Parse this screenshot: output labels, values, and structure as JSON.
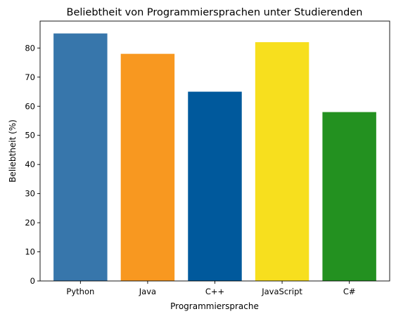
{
  "chart_data": {
    "type": "bar",
    "title": "Beliebtheit von Programmiersprachen unter Studierenden",
    "xlabel": "Programmiersprache",
    "ylabel": "Beliebtheit (%)",
    "categories": [
      "Python",
      "Java",
      "C++",
      "JavaScript",
      "C#"
    ],
    "values": [
      85,
      78,
      65,
      82,
      58
    ],
    "bar_colors": [
      "#3776ab",
      "#f89820",
      "#00599c",
      "#f7df1e",
      "#239120"
    ],
    "ylim": [
      0,
      89.25
    ],
    "yticks": [
      0,
      10,
      20,
      30,
      40,
      50,
      60,
      70,
      80
    ],
    "grid": false,
    "legend": "none"
  }
}
